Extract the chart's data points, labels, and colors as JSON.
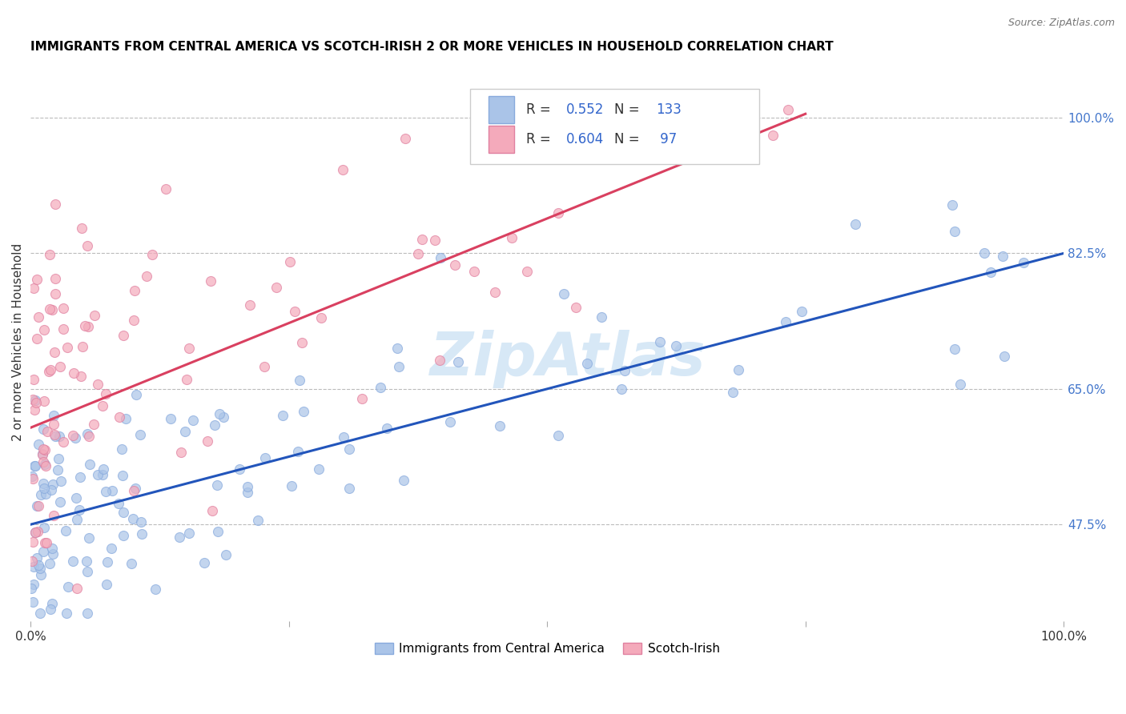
{
  "title": "IMMIGRANTS FROM CENTRAL AMERICA VS SCOTCH-IRISH 2 OR MORE VEHICLES IN HOUSEHOLD CORRELATION CHART",
  "source": "Source: ZipAtlas.com",
  "ylabel": "2 or more Vehicles in Household",
  "ytick_positions": [
    0.475,
    0.65,
    0.825,
    1.0
  ],
  "ytick_labels": [
    "47.5%",
    "65.0%",
    "82.5%",
    "100.0%"
  ],
  "xlim": [
    0.0,
    1.0
  ],
  "ylim": [
    0.35,
    1.07
  ],
  "blue_line": {
    "x0": 0.0,
    "x1": 1.0,
    "y0": 0.475,
    "y1": 0.825
  },
  "pink_line": {
    "x0": 0.0,
    "x1": 0.75,
    "y0": 0.6,
    "y1": 1.005
  },
  "blue_line_color": "#2255bb",
  "pink_line_color": "#d94060",
  "blue_fill": "#aac4e8",
  "blue_edge": "#88aadd",
  "pink_fill": "#f4aabb",
  "pink_edge": "#e080a0",
  "grid_color": "#bbbbbb",
  "watermark_color": "#d0e4f5",
  "marker_size": 75,
  "legend_box_color": "#e8e8e8",
  "R_blue": "0.552",
  "N_blue": "133",
  "R_pink": "0.604",
  "N_pink": " 97",
  "blue_label": "Immigrants from Central America",
  "pink_label": "Scotch-Irish"
}
